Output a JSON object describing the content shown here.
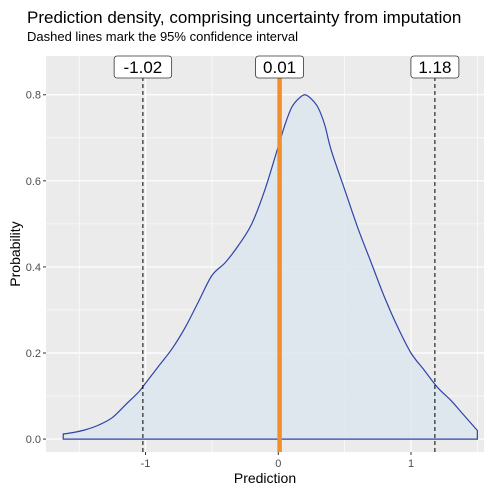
{
  "chart_data": {
    "type": "area",
    "title": "Prediction density, comprising uncertainty from imputation",
    "subtitle": "Dashed lines mark the 95% confidence interval",
    "xlabel": "Prediction",
    "ylabel": "Probability",
    "xlim": [
      -1.75,
      1.55
    ],
    "ylim": [
      -0.03,
      0.89
    ],
    "x_ticks": [
      -1,
      0,
      1
    ],
    "y_ticks": [
      0.0,
      0.2,
      0.4,
      0.6,
      0.8
    ],
    "x_tick_labels": [
      "-1",
      "0",
      "1"
    ],
    "y_tick_labels": [
      "0.0",
      "0.2",
      "0.4",
      "0.6",
      "0.8"
    ],
    "grid": true,
    "series": [
      {
        "x": [
          -1.62,
          -1.55,
          -1.45,
          -1.35,
          -1.25,
          -1.15,
          -1.05,
          -1.0,
          -0.9,
          -0.8,
          -0.7,
          -0.6,
          -0.5,
          -0.4,
          -0.3,
          -0.2,
          -0.1,
          0.0,
          0.05,
          0.1,
          0.15,
          0.2,
          0.25,
          0.3,
          0.35,
          0.4,
          0.5,
          0.6,
          0.7,
          0.8,
          0.9,
          1.0,
          1.1,
          1.2,
          1.3,
          1.4,
          1.5
        ],
        "y": [
          0.012,
          0.015,
          0.022,
          0.033,
          0.05,
          0.08,
          0.11,
          0.13,
          0.17,
          0.21,
          0.26,
          0.32,
          0.38,
          0.41,
          0.45,
          0.5,
          0.58,
          0.68,
          0.73,
          0.77,
          0.79,
          0.8,
          0.79,
          0.77,
          0.73,
          0.67,
          0.58,
          0.49,
          0.41,
          0.33,
          0.26,
          0.2,
          0.16,
          0.12,
          0.09,
          0.055,
          0.02
        ],
        "fill": "#dde6ee",
        "line_color": "#2e45a8"
      }
    ],
    "vlines": [
      {
        "x": -1.02,
        "style": "dashed",
        "color": "#000000"
      },
      {
        "x": 0.01,
        "style": "solid",
        "color": "#f28e2b"
      },
      {
        "x": 1.18,
        "style": "dashed",
        "color": "#000000"
      }
    ],
    "annotations": [
      {
        "x": -1.02,
        "text": "-1.02"
      },
      {
        "x": 0.01,
        "text": "0.01"
      },
      {
        "x": 1.18,
        "text": "1.18"
      }
    ],
    "panel_background": "#ebebeb"
  }
}
